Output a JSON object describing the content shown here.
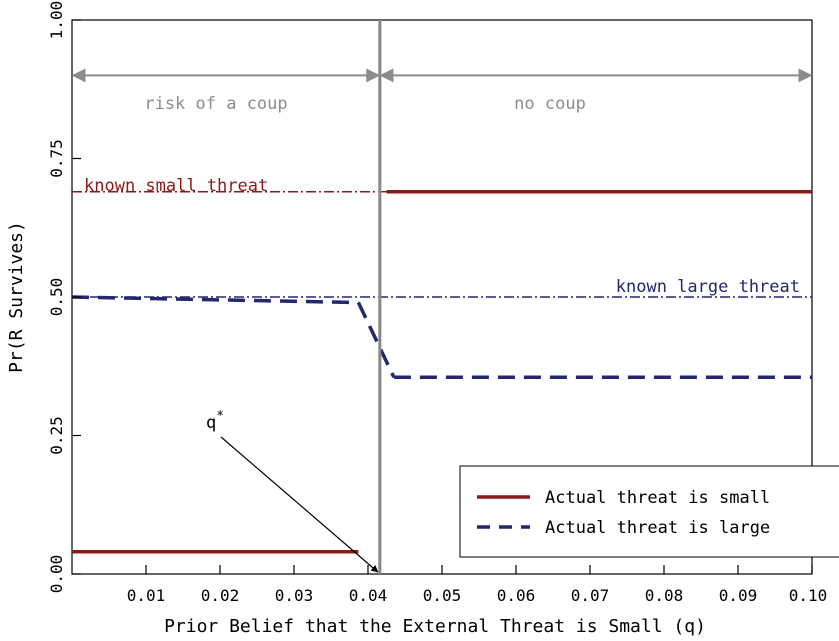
{
  "chart_data": {
    "type": "line",
    "title": "",
    "xlabel": "Prior Belief that the External Threat is Small (q)",
    "ylabel": "Pr(R Survives)",
    "xlim": [
      0.0,
      0.1
    ],
    "ylim": [
      0.0,
      1.0
    ],
    "x_ticks": [
      {
        "value": 0.01,
        "label": "0.01"
      },
      {
        "value": 0.02,
        "label": "0.02"
      },
      {
        "value": 0.03,
        "label": "0.03"
      },
      {
        "value": 0.04,
        "label": "0.04"
      },
      {
        "value": 0.05,
        "label": "0.05"
      },
      {
        "value": 0.06,
        "label": "0.06"
      },
      {
        "value": 0.07,
        "label": "0.07"
      },
      {
        "value": 0.08,
        "label": "0.08"
      },
      {
        "value": 0.09,
        "label": "0.09"
      },
      {
        "value": 0.1,
        "label": "0.10"
      }
    ],
    "y_ticks": [
      {
        "value": 0.0,
        "label": "0.00"
      },
      {
        "value": 0.25,
        "label": "0.25"
      },
      {
        "value": 0.5,
        "label": "0.50"
      },
      {
        "value": 0.75,
        "label": "0.75"
      },
      {
        "value": 1.0,
        "label": "1.00"
      }
    ],
    "grid": false,
    "legend_position": "bottom-right",
    "series": [
      {
        "name": "Actual threat is small",
        "style": "solid",
        "color": "#8b1a1a",
        "segments": [
          [
            [
              0.0,
              0.04
            ],
            [
              0.0387,
              0.04
            ]
          ],
          [
            [
              0.0425,
              0.69
            ],
            [
              0.1,
              0.69
            ]
          ]
        ]
      },
      {
        "name": "Actual threat is large",
        "style": "dashed",
        "color": "#23276e",
        "segments": [
          [
            [
              0.0,
              0.5
            ],
            [
              0.0387,
              0.49
            ]
          ],
          [
            [
              0.0387,
              0.49
            ],
            [
              0.0435,
              0.355
            ]
          ],
          [
            [
              0.0435,
              0.355
            ],
            [
              0.1,
              0.355
            ]
          ]
        ]
      }
    ],
    "reference_lines": [
      {
        "label": "known small threat",
        "y": 0.69,
        "color": "#8b1a1a",
        "style": "dash-dot",
        "x_range": [
          0.0,
          0.1
        ]
      },
      {
        "label": "known large threat",
        "y": 0.5,
        "color": "#23276e",
        "style": "dash-dot",
        "x_range": [
          0.0,
          0.1
        ]
      }
    ],
    "threshold": {
      "x": 0.0416,
      "label": "q",
      "label_superscript": "*",
      "color": "#888888"
    },
    "regions": [
      {
        "label": "risk of a coup",
        "x_range": [
          0.0,
          0.0416
        ],
        "y": 0.9
      },
      {
        "label": "no coup",
        "x_range": [
          0.0416,
          0.1
        ],
        "y": 0.9
      }
    ]
  }
}
